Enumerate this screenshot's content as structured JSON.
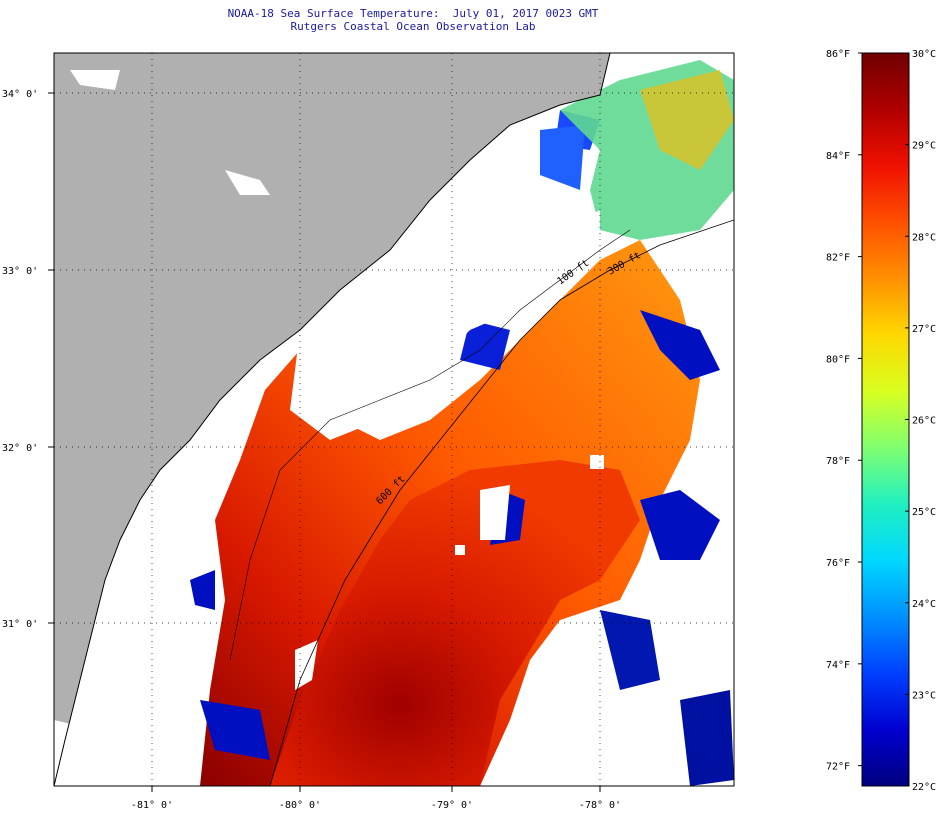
{
  "title": {
    "line1": "NOAA-18 Sea Surface Temperature:  July 01, 2017 0023 GMT",
    "line2": "Rutgers Coastal Ocean Observation Lab"
  },
  "map": {
    "lat_labels": [
      "34° 0'",
      "33° 0'",
      "32° 0'",
      "31° 0'"
    ],
    "lon_labels": [
      "-81° 0'",
      "-80° 0'",
      "-79° 0'",
      "-78° 0'"
    ],
    "contour_labels": [
      "100 ft",
      "300 ft",
      "600 ft"
    ],
    "colors": {
      "land": "#b0b0b0",
      "cloud_nodata": "#ffffff",
      "coast": "#000000"
    }
  },
  "colorbar": {
    "min_c": 22,
    "max_c": 30,
    "celsius_labels": [
      "30°C",
      "29°C",
      "28°C",
      "27°C",
      "26°C",
      "25°C",
      "24°C",
      "23°C",
      "22°C"
    ],
    "fahrenheit_labels": [
      "86°F",
      "84°F",
      "82°F",
      "80°F",
      "78°F",
      "76°F",
      "74°F",
      "72°F"
    ],
    "palette": [
      "#000080",
      "#0000d0",
      "#0040ff",
      "#0090ff",
      "#00d8ff",
      "#20f0c0",
      "#80ff70",
      "#d8ff20",
      "#ffd800",
      "#ff9000",
      "#ff5000",
      "#f01000",
      "#b00000",
      "#700000"
    ]
  }
}
